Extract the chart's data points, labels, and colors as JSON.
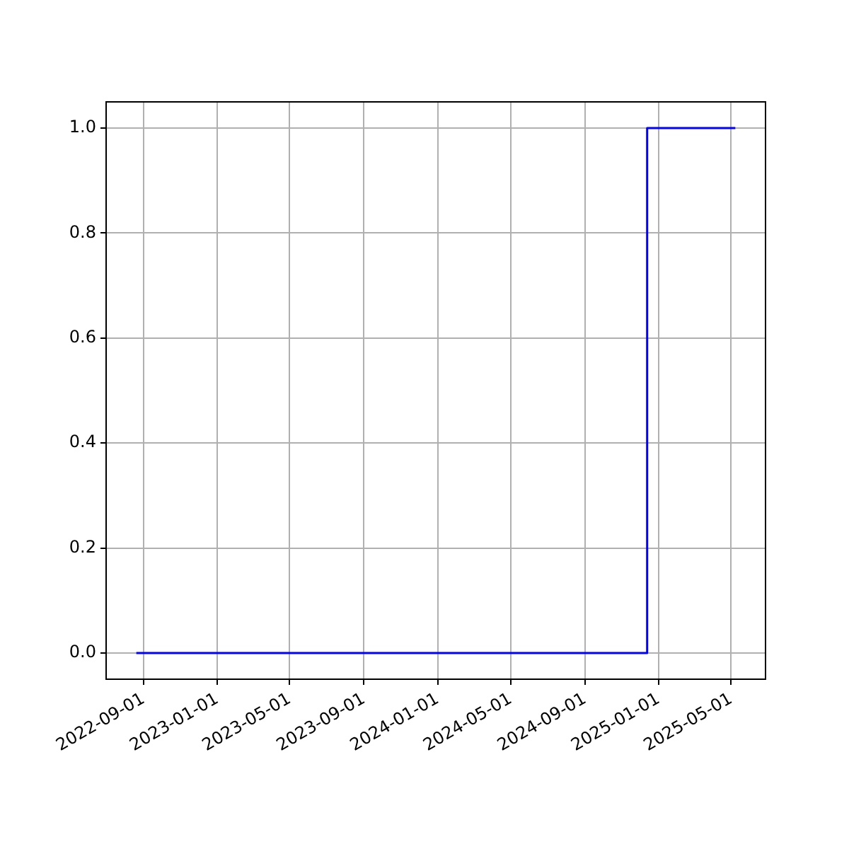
{
  "chart_data": {
    "type": "step",
    "x": [
      "2022-08-20",
      "2024-12-13",
      "2025-05-08"
    ],
    "series": [
      {
        "color": "#0000ff",
        "values": [
          0,
          1,
          1
        ]
      }
    ],
    "xlim": [
      "2022-07-01",
      "2025-06-27"
    ],
    "xticks": [
      "2022-09-01",
      "2023-01-01",
      "2023-05-01",
      "2023-09-01",
      "2024-01-01",
      "2024-05-01",
      "2024-09-01",
      "2025-01-01",
      "2025-05-01"
    ],
    "ylim": [
      -0.05,
      1.05
    ],
    "yticks": [
      {
        "value": 0,
        "label": "0.0"
      },
      {
        "value": 0.2,
        "label": "0.2"
      },
      {
        "value": 0.4,
        "label": "0.4"
      },
      {
        "value": 0.6,
        "label": "0.6"
      },
      {
        "value": 0.8,
        "label": "0.8"
      },
      {
        "value": 1,
        "label": "1.0"
      }
    ],
    "grid": true,
    "legend": false
  }
}
